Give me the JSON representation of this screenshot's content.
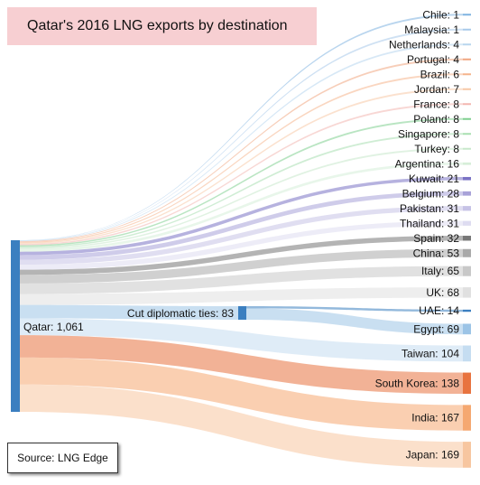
{
  "title": "Qatar's 2016 LNG exports by destination",
  "source": "Source: LNG Edge",
  "source_node": {
    "name": "Qatar",
    "value": "1,061"
  },
  "middle_node": {
    "name": "Cut diplomatic ties",
    "value": "83"
  },
  "colors": {
    "title_bg": "#f7cfd2",
    "source_bar": "#3b7fc0",
    "middle_bar": "#3b7fc0"
  },
  "chart_data": {
    "type": "sankey",
    "title": "Qatar's 2016 LNG exports by destination",
    "nodes": [
      {
        "name": "Qatar",
        "value": 1061
      },
      {
        "name": "Cut diplomatic ties",
        "value": 83
      }
    ],
    "destinations": [
      {
        "name": "Chile",
        "value": 1,
        "via": "Qatar",
        "color": "#7fb3e0"
      },
      {
        "name": "Malaysia",
        "value": 1,
        "via": "Qatar",
        "color": "#a7c9ea"
      },
      {
        "name": "Netherlands",
        "value": 4,
        "via": "Qatar",
        "color": "#b7d5ee"
      },
      {
        "name": "Portugal",
        "value": 4,
        "via": "Qatar",
        "color": "#f0a680"
      },
      {
        "name": "Brazil",
        "value": 6,
        "via": "Qatar",
        "color": "#f5b48c"
      },
      {
        "name": "Jordan",
        "value": 7,
        "via": "Qatar",
        "color": "#f7c8a6"
      },
      {
        "name": "France",
        "value": 8,
        "via": "Qatar",
        "color": "#f3b6b0"
      },
      {
        "name": "Poland",
        "value": 8,
        "via": "Qatar",
        "color": "#7fcf8f"
      },
      {
        "name": "Singapore",
        "value": 8,
        "via": "Qatar",
        "color": "#a8dfb0"
      },
      {
        "name": "Turkey",
        "value": 8,
        "via": "Qatar",
        "color": "#c7e8cb"
      },
      {
        "name": "Argentina",
        "value": 16,
        "via": "Qatar",
        "color": "#d6eed8"
      },
      {
        "name": "Kuwait",
        "value": 21,
        "via": "Qatar",
        "color": "#7a72c4"
      },
      {
        "name": "Belgium",
        "value": 28,
        "via": "Qatar",
        "color": "#a8a2d8"
      },
      {
        "name": "Pakistan",
        "value": 31,
        "via": "Qatar",
        "color": "#c6c2e6"
      },
      {
        "name": "Thailand",
        "value": 31,
        "via": "Qatar",
        "color": "#dedcf1"
      },
      {
        "name": "Spain",
        "value": 32,
        "via": "Qatar",
        "color": "#777777"
      },
      {
        "name": "China",
        "value": 53,
        "via": "Qatar",
        "color": "#a9a9a9"
      },
      {
        "name": "Italy",
        "value": 65,
        "via": "Qatar",
        "color": "#c8c8c8"
      },
      {
        "name": "UK",
        "value": 68,
        "via": "Qatar",
        "color": "#e0e0e0"
      },
      {
        "name": "UAE",
        "value": 14,
        "via": "Cut diplomatic ties",
        "color": "#3b7fc0"
      },
      {
        "name": "Egypt",
        "value": 69,
        "via": "Cut diplomatic ties",
        "color": "#9cc4e6"
      },
      {
        "name": "Taiwan",
        "value": 104,
        "via": "Qatar",
        "color": "#c5ddf1"
      },
      {
        "name": "South Korea",
        "value": 138,
        "via": "Qatar",
        "color": "#e8733f"
      },
      {
        "name": "India",
        "value": 167,
        "via": "Qatar",
        "color": "#f5a871"
      },
      {
        "name": "Japan",
        "value": 169,
        "via": "Qatar",
        "color": "#f7c6a0"
      }
    ]
  }
}
